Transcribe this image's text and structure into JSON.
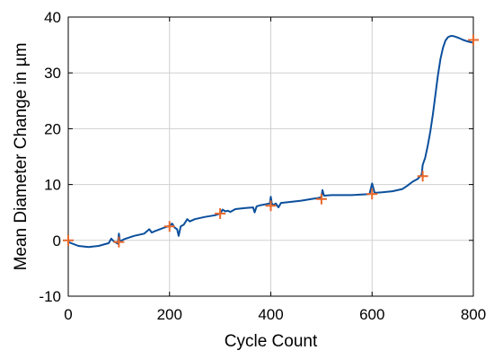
{
  "chart_data": {
    "type": "line",
    "xlabel": "Cycle Count",
    "ylabel": "Mean Diameter Change in µm",
    "xlim": [
      0,
      800
    ],
    "ylim": [
      -10,
      40
    ],
    "xticks": [
      0,
      200,
      400,
      600,
      800
    ],
    "yticks": [
      -10,
      0,
      10,
      20,
      30,
      40
    ],
    "grid": true,
    "colors": {
      "line": "#0b4f9c",
      "markers": "#e8682a",
      "grid": "#d0d0d0",
      "axes": "#000000"
    },
    "series": [
      {
        "kind": "line",
        "x": [
          0,
          20,
          40,
          60,
          80,
          85,
          90,
          98,
          100,
          102,
          110,
          130,
          150,
          160,
          165,
          170,
          190,
          200,
          205,
          210,
          215,
          218,
          222,
          228,
          235,
          240,
          250,
          270,
          290,
          300,
          305,
          310,
          315,
          320,
          330,
          350,
          365,
          368,
          372,
          380,
          398,
          400,
          402,
          405,
          410,
          415,
          420,
          440,
          460,
          480,
          495,
          500,
          502,
          505,
          520,
          560,
          595,
          600,
          605,
          620,
          640,
          660,
          670,
          680,
          690,
          698,
          700,
          705,
          710,
          715,
          720,
          725,
          730,
          735,
          740,
          745,
          750,
          755,
          760,
          770,
          780,
          790,
          800
        ],
        "y": [
          -0.3,
          -1.0,
          -1.2,
          -1.0,
          -0.5,
          0.3,
          -0.2,
          -0.6,
          1.2,
          -0.2,
          0.2,
          0.8,
          1.2,
          2.0,
          1.4,
          1.6,
          2.3,
          2.6,
          3.0,
          2.3,
          2.0,
          0.8,
          2.5,
          2.8,
          3.8,
          3.4,
          3.8,
          4.2,
          4.5,
          4.8,
          5.5,
          5.2,
          5.3,
          5.1,
          5.6,
          5.8,
          5.9,
          5.0,
          6.1,
          6.3,
          6.6,
          7.8,
          6.6,
          6.3,
          6.6,
          5.9,
          6.7,
          6.9,
          7.1,
          7.4,
          7.6,
          7.8,
          9.0,
          8.0,
          8.1,
          8.1,
          8.3,
          10.2,
          8.5,
          8.6,
          8.8,
          9.2,
          9.8,
          10.5,
          11.0,
          11.8,
          13.5,
          14.8,
          17.0,
          19.5,
          22.5,
          26.0,
          29.5,
          32.5,
          34.5,
          35.8,
          36.4,
          36.6,
          36.6,
          36.3,
          35.9,
          35.6,
          35.4
        ]
      },
      {
        "kind": "markers",
        "x": [
          0,
          100,
          200,
          300,
          400,
          500,
          600,
          700,
          800
        ],
        "y": [
          0.0,
          -0.3,
          2.5,
          4.8,
          6.2,
          7.4,
          8.3,
          11.5,
          35.9
        ]
      }
    ]
  }
}
